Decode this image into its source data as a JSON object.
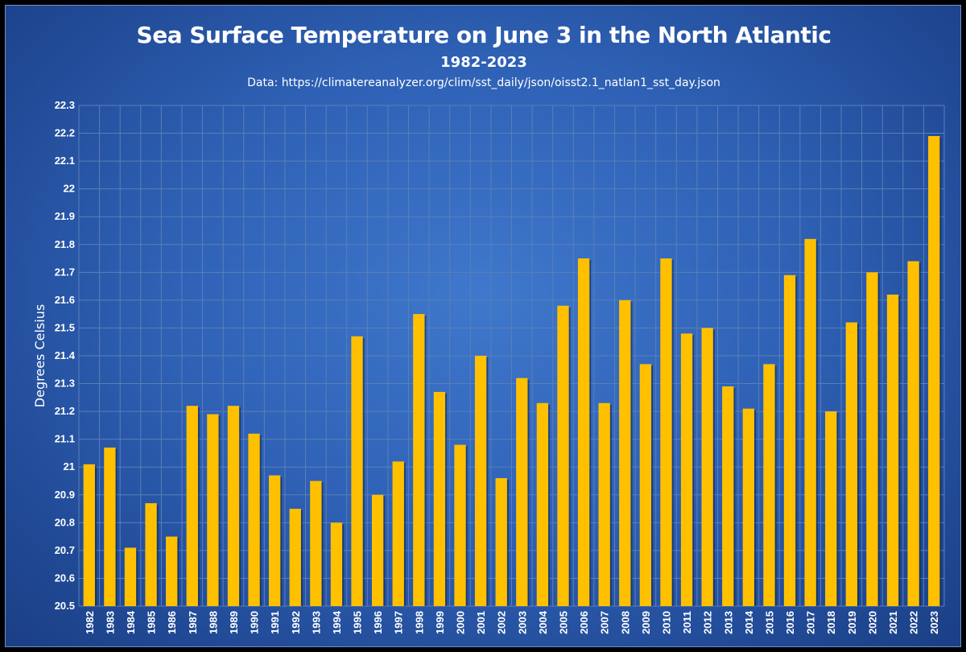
{
  "chart_data": {
    "type": "bar",
    "title": "Sea Surface Temperature on June 3 in the North Atlantic",
    "subtitle": "1982-2023",
    "source": "Data: https://climatereanalyzer.org/clim/sst_daily/json/oisst2.1_natlan1_sst_day.json",
    "xlabel": "",
    "ylabel": "Degrees Celsius",
    "ylim": [
      20.5,
      22.3
    ],
    "ystep": 0.1,
    "yticks": [
      "20.5",
      "20.6",
      "20.7",
      "20.8",
      "20.9",
      "21",
      "21.1",
      "21.2",
      "21.3",
      "21.4",
      "21.5",
      "21.6",
      "21.7",
      "21.8",
      "21.9",
      "22",
      "22.1",
      "22.2",
      "22.3"
    ],
    "grid": true,
    "categories": [
      "1982",
      "1983",
      "1984",
      "1985",
      "1986",
      "1987",
      "1988",
      "1989",
      "1990",
      "1991",
      "1992",
      "1993",
      "1994",
      "1995",
      "1996",
      "1997",
      "1998",
      "1999",
      "2000",
      "2001",
      "2002",
      "2003",
      "2004",
      "2005",
      "2006",
      "2007",
      "2008",
      "2009",
      "2010",
      "2011",
      "2012",
      "2013",
      "2014",
      "2015",
      "2016",
      "2017",
      "2018",
      "2019",
      "2020",
      "2021",
      "2022",
      "2023"
    ],
    "values": [
      21.01,
      21.07,
      20.71,
      20.87,
      20.75,
      21.22,
      21.19,
      21.22,
      21.12,
      20.97,
      20.85,
      20.95,
      20.8,
      21.47,
      20.9,
      21.02,
      21.55,
      21.27,
      21.08,
      21.4,
      20.96,
      21.32,
      21.23,
      21.58,
      21.75,
      21.23,
      21.6,
      21.37,
      21.75,
      21.48,
      21.5,
      21.29,
      21.21,
      21.37,
      21.69,
      21.82,
      21.2,
      21.52,
      21.7,
      21.62,
      21.74,
      22.19
    ],
    "bar_color": "#ffc000",
    "grid_color": "#5a7fb8",
    "axis_text_color": "#ffffff"
  }
}
